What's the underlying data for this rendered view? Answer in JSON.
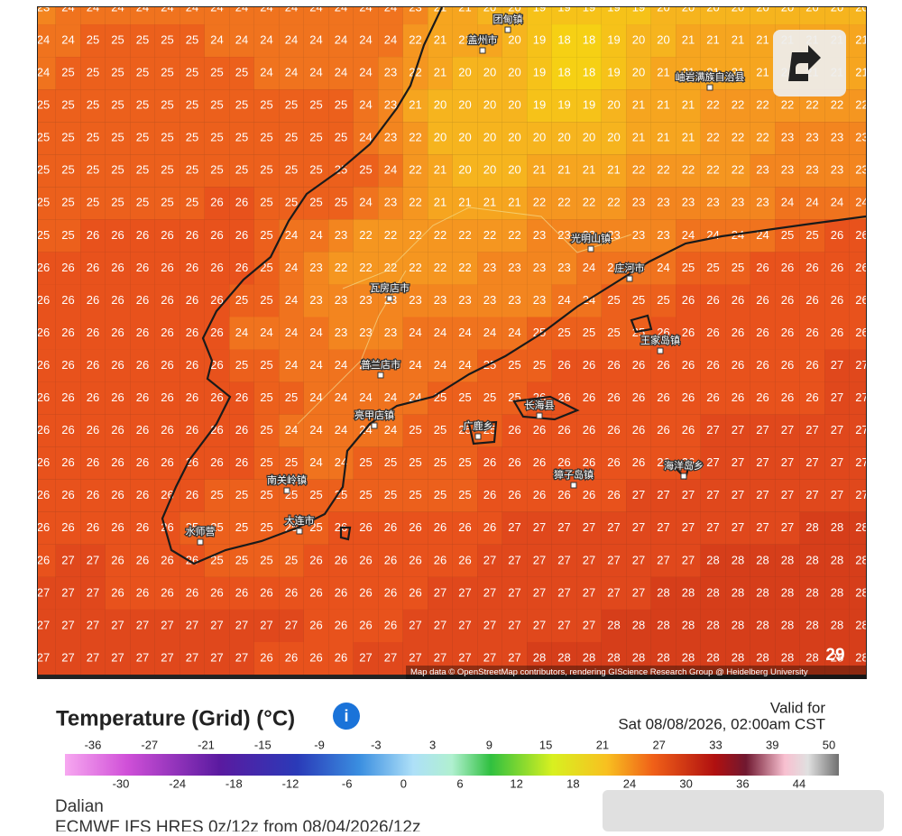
{
  "map": {
    "grid": [
      [
        23,
        24,
        24,
        24,
        24,
        24,
        24,
        24,
        24,
        24,
        24,
        24,
        24,
        24,
        24,
        23,
        21,
        21,
        20,
        20,
        19,
        19,
        19,
        19,
        19,
        20,
        20,
        20,
        20,
        20,
        20,
        20,
        20,
        20
      ],
      [
        24,
        24,
        25,
        25,
        25,
        25,
        25,
        24,
        24,
        24,
        24,
        24,
        24,
        24,
        24,
        22,
        21,
        21,
        21,
        20,
        19,
        18,
        18,
        19,
        20,
        20,
        21,
        21,
        21,
        21,
        21,
        21,
        21,
        21
      ],
      [
        24,
        25,
        25,
        25,
        25,
        25,
        25,
        25,
        25,
        24,
        24,
        24,
        24,
        24,
        23,
        22,
        21,
        20,
        20,
        20,
        19,
        18,
        18,
        19,
        20,
        21,
        21,
        21,
        21,
        21,
        21,
        21,
        21,
        21
      ],
      [
        25,
        25,
        25,
        25,
        25,
        25,
        25,
        25,
        25,
        25,
        25,
        25,
        25,
        24,
        23,
        21,
        20,
        20,
        20,
        20,
        19,
        19,
        19,
        20,
        21,
        21,
        21,
        22,
        22,
        22,
        22,
        22,
        22,
        22
      ],
      [
        25,
        25,
        25,
        25,
        25,
        25,
        25,
        25,
        25,
        25,
        25,
        25,
        25,
        24,
        23,
        22,
        20,
        20,
        20,
        20,
        20,
        20,
        20,
        20,
        21,
        21,
        21,
        22,
        22,
        22,
        23,
        23,
        23,
        23
      ],
      [
        25,
        25,
        25,
        25,
        25,
        25,
        25,
        25,
        25,
        25,
        25,
        25,
        25,
        25,
        24,
        22,
        21,
        20,
        20,
        20,
        21,
        21,
        21,
        21,
        22,
        22,
        22,
        22,
        22,
        23,
        23,
        23,
        23,
        23
      ],
      [
        25,
        25,
        25,
        25,
        25,
        25,
        25,
        26,
        26,
        25,
        25,
        25,
        25,
        24,
        23,
        22,
        21,
        21,
        21,
        21,
        22,
        22,
        22,
        22,
        23,
        23,
        23,
        23,
        23,
        23,
        24,
        24,
        24,
        24
      ],
      [
        25,
        25,
        26,
        26,
        26,
        26,
        26,
        26,
        26,
        25,
        24,
        24,
        23,
        22,
        22,
        22,
        22,
        22,
        22,
        22,
        23,
        23,
        23,
        23,
        23,
        23,
        24,
        24,
        24,
        24,
        25,
        25,
        26,
        26
      ],
      [
        26,
        26,
        26,
        26,
        26,
        26,
        26,
        26,
        26,
        25,
        24,
        23,
        22,
        22,
        22,
        22,
        22,
        22,
        23,
        23,
        23,
        23,
        24,
        24,
        24,
        24,
        25,
        25,
        25,
        26,
        26,
        26,
        26,
        26
      ],
      [
        26,
        26,
        26,
        26,
        26,
        26,
        26,
        26,
        25,
        25,
        24,
        23,
        23,
        23,
        23,
        23,
        23,
        23,
        23,
        23,
        23,
        24,
        24,
        25,
        25,
        25,
        26,
        26,
        26,
        26,
        26,
        26,
        26,
        26
      ],
      [
        26,
        26,
        26,
        26,
        26,
        26,
        26,
        26,
        24,
        24,
        24,
        24,
        23,
        23,
        23,
        24,
        24,
        24,
        24,
        24,
        25,
        25,
        25,
        25,
        25,
        26,
        26,
        26,
        26,
        26,
        26,
        26,
        26,
        26
      ],
      [
        26,
        26,
        26,
        26,
        26,
        26,
        26,
        26,
        25,
        25,
        24,
        24,
        24,
        24,
        24,
        24,
        24,
        24,
        25,
        25,
        25,
        26,
        26,
        26,
        26,
        26,
        26,
        26,
        26,
        26,
        26,
        26,
        27,
        27
      ],
      [
        26,
        26,
        26,
        26,
        26,
        26,
        26,
        26,
        26,
        25,
        25,
        24,
        24,
        24,
        24,
        24,
        25,
        25,
        25,
        25,
        26,
        26,
        26,
        26,
        26,
        26,
        26,
        26,
        26,
        26,
        26,
        26,
        27,
        27
      ],
      [
        26,
        26,
        26,
        26,
        26,
        26,
        26,
        26,
        26,
        25,
        24,
        24,
        24,
        24,
        24,
        25,
        25,
        25,
        25,
        26,
        26,
        26,
        26,
        26,
        26,
        26,
        26,
        27,
        27,
        27,
        27,
        27,
        27,
        27
      ],
      [
        26,
        26,
        26,
        26,
        26,
        26,
        26,
        26,
        26,
        25,
        25,
        24,
        24,
        25,
        25,
        25,
        25,
        25,
        26,
        26,
        26,
        26,
        26,
        26,
        26,
        26,
        26,
        27,
        27,
        27,
        27,
        27,
        27,
        27
      ],
      [
        26,
        26,
        26,
        26,
        26,
        26,
        26,
        25,
        25,
        25,
        25,
        25,
        25,
        25,
        25,
        25,
        25,
        25,
        26,
        26,
        26,
        26,
        26,
        26,
        27,
        27,
        27,
        27,
        27,
        27,
        27,
        27,
        27,
        27
      ],
      [
        26,
        26,
        26,
        26,
        26,
        26,
        25,
        25,
        25,
        25,
        25,
        25,
        26,
        26,
        26,
        26,
        26,
        26,
        26,
        27,
        27,
        27,
        27,
        27,
        27,
        27,
        27,
        27,
        27,
        27,
        27,
        28,
        28,
        28
      ],
      [
        26,
        27,
        27,
        26,
        26,
        26,
        26,
        25,
        25,
        25,
        25,
        26,
        26,
        26,
        26,
        26,
        26,
        26,
        27,
        27,
        27,
        27,
        27,
        27,
        27,
        27,
        27,
        28,
        28,
        28,
        28,
        28,
        28,
        28
      ],
      [
        27,
        27,
        27,
        26,
        26,
        26,
        26,
        26,
        26,
        26,
        26,
        26,
        26,
        26,
        26,
        26,
        27,
        27,
        27,
        27,
        27,
        27,
        27,
        27,
        27,
        28,
        28,
        28,
        28,
        28,
        28,
        28,
        28,
        28
      ],
      [
        27,
        27,
        27,
        27,
        27,
        27,
        27,
        27,
        27,
        27,
        27,
        26,
        26,
        26,
        26,
        27,
        27,
        27,
        27,
        27,
        27,
        27,
        27,
        28,
        28,
        28,
        28,
        28,
        28,
        28,
        28,
        28,
        28,
        28
      ],
      [
        27,
        27,
        27,
        27,
        27,
        27,
        27,
        27,
        27,
        26,
        26,
        26,
        26,
        27,
        27,
        27,
        27,
        27,
        27,
        27,
        28,
        28,
        28,
        28,
        28,
        28,
        28,
        28,
        28,
        28,
        28,
        28,
        28,
        28
      ]
    ],
    "places": [
      "团甸镇",
      "盖州市",
      "岫岩满族自治县",
      "光明山镇",
      "庄河市",
      "瓦房店市",
      "普兰店市",
      "亮甲店镇",
      "长海县",
      "王家岛镇",
      "广鹿乡",
      "獐子岛镇",
      "海洋岛乡",
      "南关岭镇",
      "大连市",
      "水师营"
    ],
    "badge": "29",
    "attribution": "Map data © OpenStreetMap contributors, rendering GIScience Research Group @ Heidelberg University"
  },
  "legend": {
    "title": "Temperature (Grid) (°C)",
    "info": "i",
    "top_labels": [
      "-36",
      "-27",
      "-21",
      "-15",
      "-9",
      "-3",
      "3",
      "9",
      "15",
      "21",
      "27",
      "33",
      "39",
      "50"
    ],
    "bottom_labels": [
      "-30",
      "-24",
      "-18",
      "-12",
      "-6",
      "0",
      "6",
      "12",
      "18",
      "24",
      "30",
      "36",
      "44"
    ]
  },
  "valid": {
    "label": "Valid for",
    "time": "Sat 08/08/2026, 02:00am CST"
  },
  "location": "Dalian",
  "model": "ECMWF IFS HRES 0z/12z from 08/04/2026/12z"
}
